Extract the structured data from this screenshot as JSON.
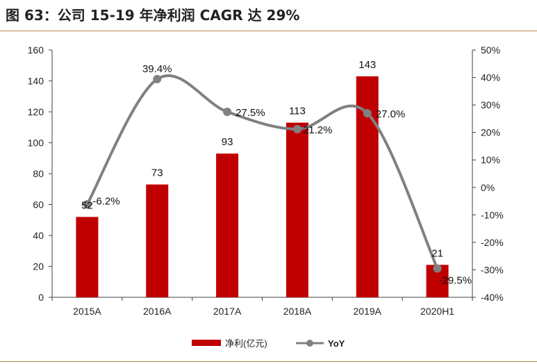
{
  "title": "图 63：公司 15-19 年净利润 CAGR 达 29%",
  "colors": {
    "bar": "#c00000",
    "line": "#808080",
    "rule": "#b8864b",
    "axis": "#404040"
  },
  "chart_data": {
    "type": "bar",
    "categories": [
      "2015A",
      "2016A",
      "2017A",
      "2018A",
      "2019A",
      "2020H1"
    ],
    "series": [
      {
        "name": "净利(亿元)",
        "type": "bar",
        "axis": "left",
        "values": [
          52,
          73,
          93,
          113,
          143,
          21
        ]
      },
      {
        "name": "YoY",
        "type": "line",
        "axis": "right",
        "values": [
          -6.2,
          39.4,
          27.5,
          21.2,
          27.0,
          -29.5
        ]
      }
    ],
    "bar_labels": [
      "52",
      "73",
      "93",
      "113",
      "143",
      "21"
    ],
    "line_labels": [
      "-6.2%",
      "39.4%",
      "27.5%",
      "21.2%",
      "27.0%",
      "-29.5%"
    ],
    "y_left": {
      "lim": [
        0,
        160
      ],
      "ticks": [
        "0",
        "20",
        "40",
        "60",
        "80",
        "100",
        "120",
        "140",
        "160"
      ]
    },
    "y_right": {
      "lim": [
        -40,
        50
      ],
      "ticks": [
        "-40%",
        "-30%",
        "-20%",
        "-10%",
        "0%",
        "10%",
        "20%",
        "30%",
        "40%",
        "50%"
      ]
    },
    "legend": {
      "position": "bottom",
      "items": [
        "净利(亿元)",
        "YoY"
      ]
    },
    "grid": false
  }
}
